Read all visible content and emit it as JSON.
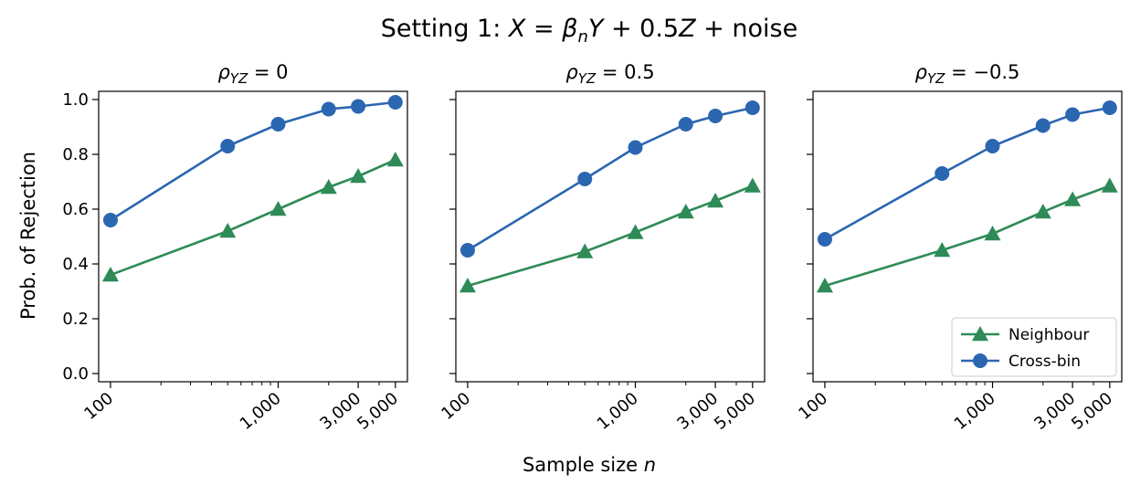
{
  "figure": {
    "title": {
      "prefix": "Setting 1: ",
      "var_x": "X",
      "eq1": " = ",
      "beta": "β",
      "beta_sub": "n",
      "var_y": "Y",
      "mid": " + 0.5",
      "var_z": "Z",
      "suffix": " + noise"
    },
    "xlabel": {
      "text": "Sample size ",
      "var": "n"
    },
    "ylabel": "Prob. of Rejection"
  },
  "colors": {
    "neighbour": "#2e8b57",
    "crossbin": "#2b66b1"
  },
  "chart_data": [
    {
      "type": "line",
      "title": {
        "rho": "ρ",
        "sub": "YZ",
        "value": " = 0"
      },
      "x": [
        100,
        500,
        1000,
        2000,
        3000,
        5000
      ],
      "xscale": "log",
      "xlim": [
        85,
        5900
      ],
      "xticks": [
        100,
        1000,
        3000,
        5000
      ],
      "xtick_labels": [
        "100",
        "1,000",
        "3,000",
        "5,000"
      ],
      "ylim": [
        -0.03,
        1.03
      ],
      "yticks": [
        0.0,
        0.2,
        0.4,
        0.6,
        0.8,
        1.0
      ],
      "ytick_labels": [
        "0.0",
        "0.2",
        "0.4",
        "0.6",
        "0.8",
        "1.0"
      ],
      "show_ytick_labels": true,
      "series": [
        {
          "name": "Neighbour",
          "marker": "triangle",
          "values": [
            0.36,
            0.52,
            0.6,
            0.68,
            0.72,
            0.78
          ]
        },
        {
          "name": "Cross-bin",
          "marker": "circle",
          "values": [
            0.56,
            0.83,
            0.91,
            0.965,
            0.975,
            0.99
          ]
        }
      ]
    },
    {
      "type": "line",
      "title": {
        "rho": "ρ",
        "sub": "YZ",
        "value": " = 0.5"
      },
      "x": [
        100,
        500,
        1000,
        2000,
        3000,
        5000
      ],
      "xscale": "log",
      "xlim": [
        85,
        5900
      ],
      "xticks": [
        100,
        1000,
        3000,
        5000
      ],
      "xtick_labels": [
        "100",
        "1,000",
        "3,000",
        "5,000"
      ],
      "ylim": [
        -0.03,
        1.03
      ],
      "yticks": [
        0.0,
        0.2,
        0.4,
        0.6,
        0.8,
        1.0
      ],
      "ytick_labels": [
        "0.0",
        "0.2",
        "0.4",
        "0.6",
        "0.8",
        "1.0"
      ],
      "show_ytick_labels": false,
      "series": [
        {
          "name": "Neighbour",
          "marker": "triangle",
          "values": [
            0.32,
            0.445,
            0.515,
            0.59,
            0.63,
            0.685
          ]
        },
        {
          "name": "Cross-bin",
          "marker": "circle",
          "values": [
            0.45,
            0.71,
            0.825,
            0.91,
            0.94,
            0.97
          ]
        }
      ]
    },
    {
      "type": "line",
      "title": {
        "rho": "ρ",
        "sub": "YZ",
        "value": " = −0.5"
      },
      "x": [
        100,
        500,
        1000,
        2000,
        3000,
        5000
      ],
      "xscale": "log",
      "xlim": [
        85,
        5900
      ],
      "xticks": [
        100,
        1000,
        3000,
        5000
      ],
      "xtick_labels": [
        "100",
        "1,000",
        "3,000",
        "5,000"
      ],
      "ylim": [
        -0.03,
        1.03
      ],
      "yticks": [
        0.0,
        0.2,
        0.4,
        0.6,
        0.8,
        1.0
      ],
      "ytick_labels": [
        "0.0",
        "0.2",
        "0.4",
        "0.6",
        "0.8",
        "1.0"
      ],
      "show_ytick_labels": false,
      "legend": "lower-right",
      "series": [
        {
          "name": "Neighbour",
          "marker": "triangle",
          "values": [
            0.32,
            0.45,
            0.51,
            0.59,
            0.635,
            0.685
          ]
        },
        {
          "name": "Cross-bin",
          "marker": "circle",
          "values": [
            0.49,
            0.73,
            0.83,
            0.905,
            0.945,
            0.97
          ]
        }
      ]
    }
  ]
}
